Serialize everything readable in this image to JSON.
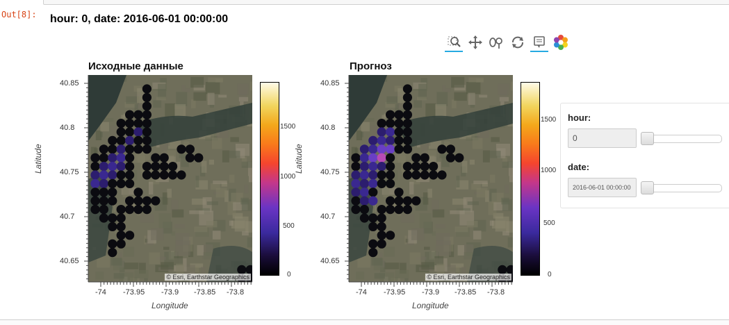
{
  "notebook": {
    "prompt": "Out[8]:",
    "header": "hour: 0, date: 2016-06-01 00:00:00"
  },
  "toolbar": {
    "tools": [
      {
        "name": "box-zoom",
        "active": true
      },
      {
        "name": "pan",
        "active": false
      },
      {
        "name": "wheel-zoom",
        "active": false
      },
      {
        "name": "reset",
        "active": false
      },
      {
        "name": "hover",
        "active": true
      },
      {
        "name": "bokeh-logo",
        "active": false
      }
    ]
  },
  "plots": [
    {
      "title": "Исходные данные",
      "xlabel": "Longitude",
      "ylabel": "Latitude",
      "xticks": [
        "-74",
        "-73.95",
        "-73.9",
        "-73.85",
        "-73.8"
      ],
      "yticks": [
        "40.85",
        "40.8",
        "40.75",
        "40.7",
        "40.65"
      ],
      "attribution": "© Esri, Earthstar Geographics",
      "colorbar_ticks": [
        "1500",
        "1000",
        "500",
        "0"
      ]
    },
    {
      "title": "Прогноз",
      "xlabel": "Longitude",
      "ylabel": "Latitude",
      "xticks": [
        "-74",
        "-73.95",
        "-73.9",
        "-73.85",
        "-73.8"
      ],
      "yticks": [
        "40.85",
        "40.8",
        "40.75",
        "40.7",
        "40.65"
      ],
      "attribution": "© Esri, Earthstar Geographics",
      "colorbar_ticks": [
        "1500",
        "1000",
        "500",
        "0"
      ]
    }
  ],
  "widgets": {
    "hour": {
      "label": "hour:",
      "value": "0",
      "slider_fraction": 0
    },
    "date": {
      "label": "date:",
      "value": "2016-06-01 00:00:00",
      "slider_fraction": 0
    }
  },
  "colors": {
    "accent": "#26aae1",
    "prompt": "#d84315",
    "cell_dark": "#0b0b10",
    "cell_purple": "#2c1d6e",
    "cell_violet": "#4b2ca8",
    "cell_pink": "#b84bb5"
  }
}
